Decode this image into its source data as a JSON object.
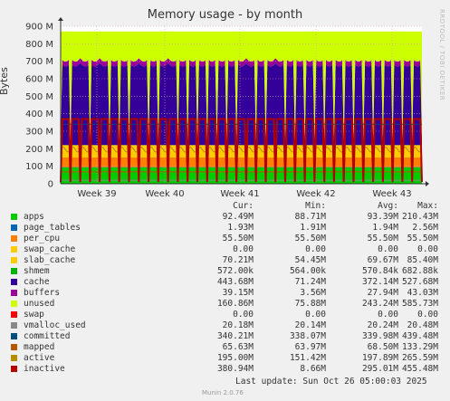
{
  "chart_data": {
    "type": "area",
    "title": "Memory usage - by month",
    "ylabel": "Bytes",
    "side_text": "RRDTOOL / TOBI OETIKER",
    "ylim": [
      0,
      900
    ],
    "yunit": "M",
    "yticks": [
      "0",
      "100 M",
      "200 M",
      "300 M",
      "400 M",
      "500 M",
      "600 M",
      "700 M",
      "800 M",
      "900 M"
    ],
    "xticks": [
      "Week 39",
      "Week 40",
      "Week 41",
      "Week 42",
      "Week 43"
    ],
    "grid": true,
    "stack_levels_M": {
      "apps": 93,
      "page_tables": 95,
      "per_cpu": 150,
      "swap_cache": 150,
      "slab_cache": 220,
      "shmem": 221,
      "cache_peak": 690,
      "cache_trough": 240,
      "buffers_extra": 28,
      "total_unused_top": 870
    },
    "inactive_peak_M": 370,
    "inactive_trough_M": 10,
    "cycles": 37,
    "colors": {
      "apps": "#00cc00",
      "page_tables": "#0066b3",
      "per_cpu": "#ff8000",
      "swap_cache": "#ffcc00",
      "slab_cache": "#ffcc00",
      "shmem": "#00b300",
      "cache": "#330099",
      "buffers": "#990099",
      "unused": "#ccff00",
      "swap": "#ff0000",
      "vmalloc_used": "#888888",
      "committed": "#004d80",
      "mapped": "#b35a00",
      "active": "#b38f00",
      "inactive": "#b30000"
    }
  },
  "legend": {
    "headers": [
      "Cur:",
      "Min:",
      "Avg:",
      "Max:"
    ],
    "rows": [
      {
        "name": "apps",
        "cur": "92.49M",
        "min": "88.71M",
        "avg": "93.39M",
        "max": "210.43M"
      },
      {
        "name": "page_tables",
        "cur": "1.93M",
        "min": "1.91M",
        "avg": "1.94M",
        "max": "2.56M"
      },
      {
        "name": "per_cpu",
        "cur": "55.50M",
        "min": "55.50M",
        "avg": "55.50M",
        "max": "55.50M"
      },
      {
        "name": "swap_cache",
        "cur": "0.00",
        "min": "0.00",
        "avg": "0.00",
        "max": "0.00"
      },
      {
        "name": "slab_cache",
        "cur": "70.21M",
        "min": "54.45M",
        "avg": "69.67M",
        "max": "85.40M"
      },
      {
        "name": "shmem",
        "cur": "572.00k",
        "min": "564.00k",
        "avg": "570.84k",
        "max": "682.88k"
      },
      {
        "name": "cache",
        "cur": "443.68M",
        "min": "71.24M",
        "avg": "372.14M",
        "max": "527.68M"
      },
      {
        "name": "buffers",
        "cur": "39.15M",
        "min": "3.56M",
        "avg": "27.94M",
        "max": "43.03M"
      },
      {
        "name": "unused",
        "cur": "160.86M",
        "min": "75.88M",
        "avg": "243.24M",
        "max": "585.73M"
      },
      {
        "name": "swap",
        "cur": "0.00",
        "min": "0.00",
        "avg": "0.00",
        "max": "0.00"
      },
      {
        "name": "vmalloc_used",
        "cur": "20.18M",
        "min": "20.14M",
        "avg": "20.24M",
        "max": "20.48M"
      },
      {
        "name": "committed",
        "cur": "340.21M",
        "min": "338.07M",
        "avg": "339.98M",
        "max": "439.48M"
      },
      {
        "name": "mapped",
        "cur": "65.63M",
        "min": "63.97M",
        "avg": "68.50M",
        "max": "133.29M"
      },
      {
        "name": "active",
        "cur": "195.00M",
        "min": "151.42M",
        "avg": "197.89M",
        "max": "265.59M"
      },
      {
        "name": "inactive",
        "cur": "380.94M",
        "min": "8.66M",
        "avg": "295.01M",
        "max": "455.48M"
      }
    ]
  },
  "footer": {
    "last_update": "Last update: Sun Oct 26 05:00:03 2025",
    "version": "Munin 2.0.76"
  }
}
